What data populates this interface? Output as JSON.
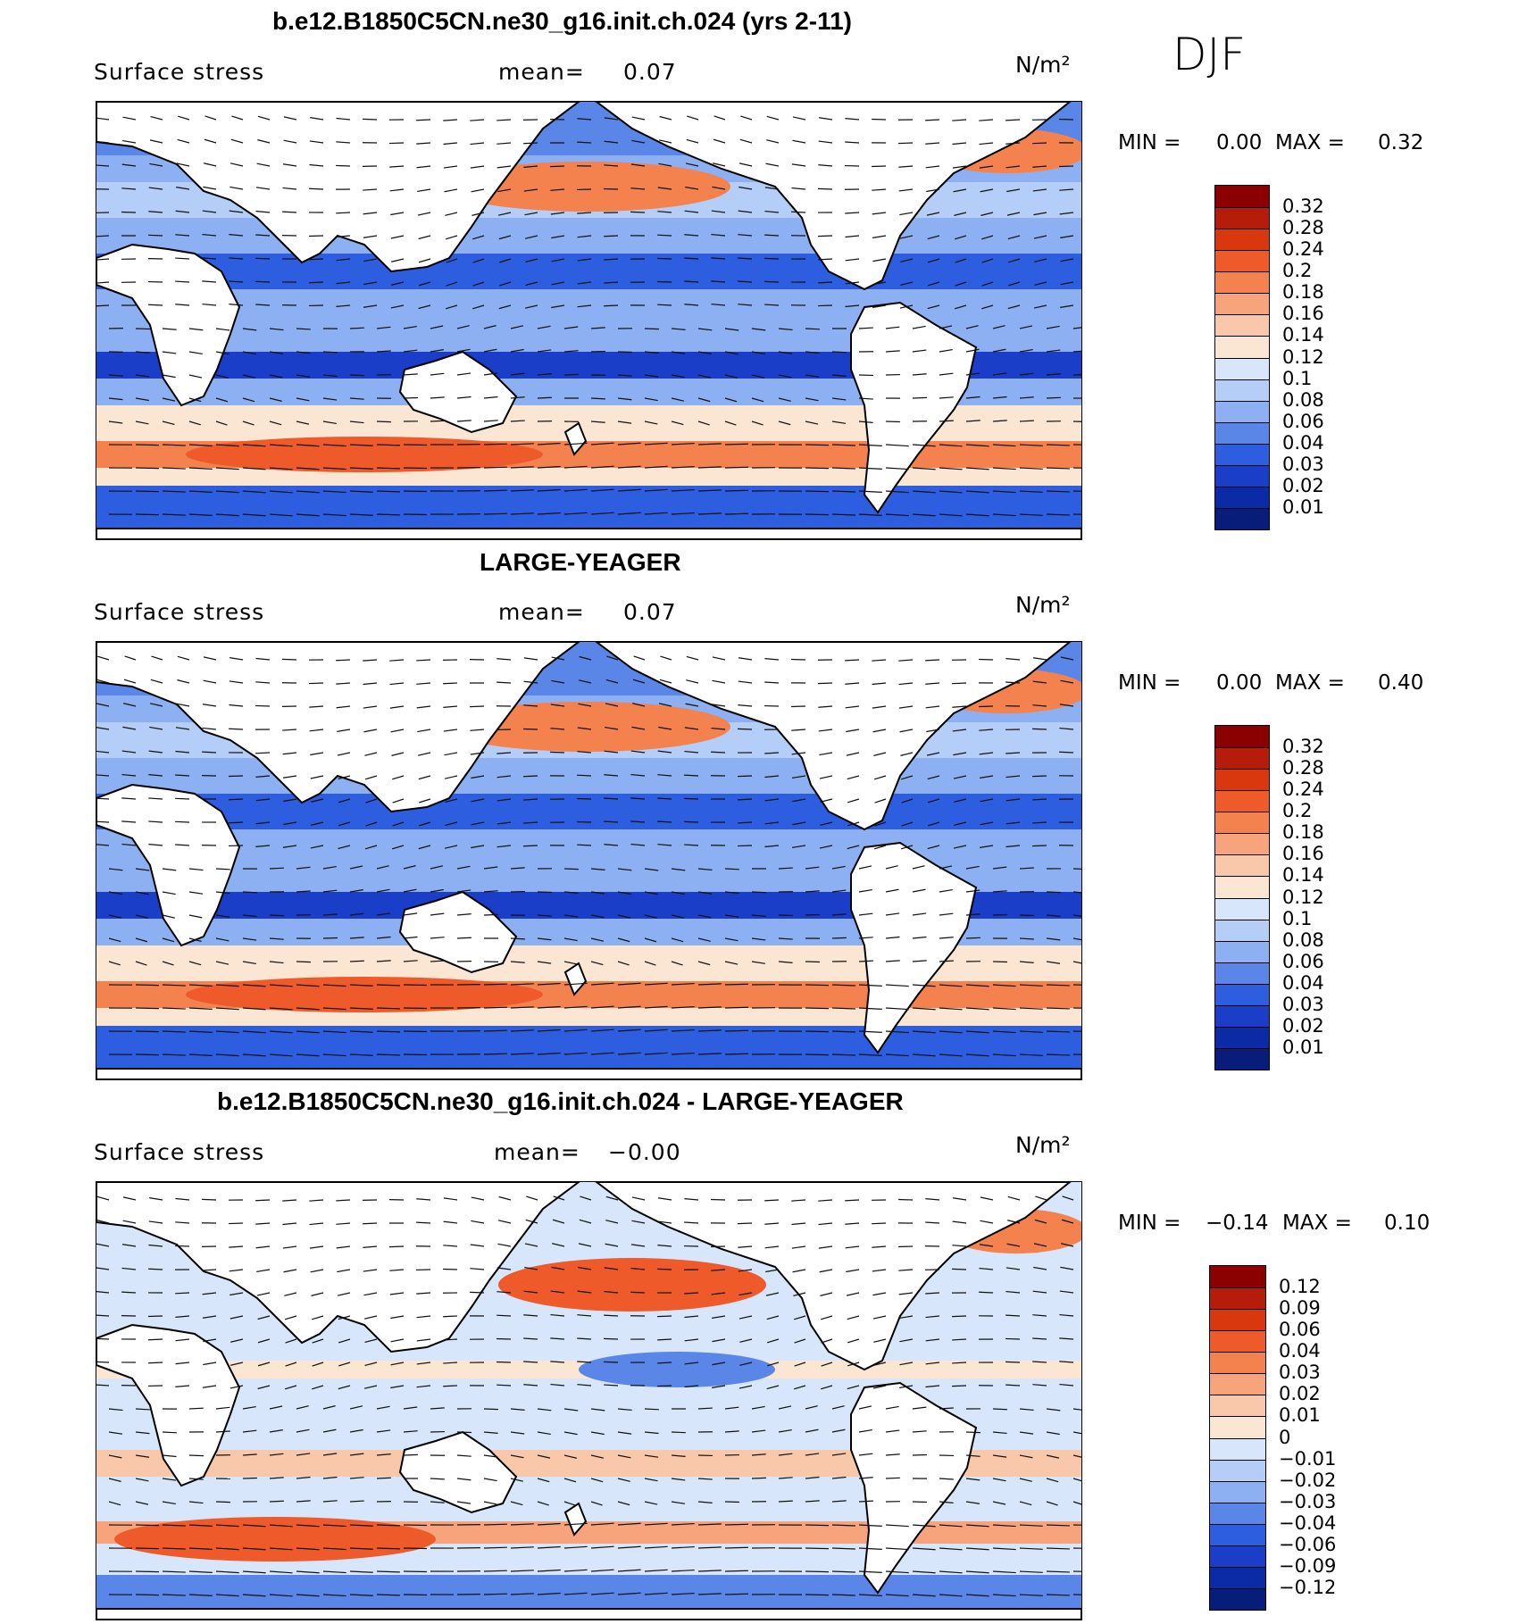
{
  "season": "DJF",
  "colors": {
    "ocean_bg": "#3f6fe0",
    "land": "#ffffff",
    "coast": "#000000",
    "arrow": "#111111"
  },
  "panels": [
    {
      "id": "model",
      "title": "b.e12.B1850C5CN.ne30_g16.init.ch.024 (yrs 2-11)",
      "variable": "Surface stress",
      "mean_label": "mean=",
      "mean_value": "0.07",
      "units": "N/m²",
      "min_label": "MIN =",
      "min_value": "0.00",
      "max_label": "MAX =",
      "max_value": "0.32",
      "legend_labels": [
        "0.32",
        "0.28",
        "0.24",
        "0.2",
        "0.18",
        "0.16",
        "0.14",
        "0.12",
        "0.1",
        "0.08",
        "0.06",
        "0.04",
        "0.03",
        "0.02",
        "0.01"
      ],
      "legend_colors": [
        "#8b0000",
        "#b51c0a",
        "#d9380f",
        "#ee5a2a",
        "#f3824f",
        "#f7a37c",
        "#f9c7a9",
        "#fbe5d3",
        "#d7e6fb",
        "#b4cef7",
        "#8cb0f2",
        "#5a86e8",
        "#2e5ee0",
        "#1b3ec8",
        "#0b2aa6",
        "#081c7a"
      ]
    },
    {
      "id": "obs",
      "title": "LARGE-YEAGER",
      "variable": "Surface stress",
      "mean_label": "mean=",
      "mean_value": "0.07",
      "units": "N/m²",
      "min_label": "MIN =",
      "min_value": "0.00",
      "max_label": "MAX =",
      "max_value": "0.40",
      "legend_labels": [
        "0.32",
        "0.28",
        "0.24",
        "0.2",
        "0.18",
        "0.16",
        "0.14",
        "0.12",
        "0.1",
        "0.08",
        "0.06",
        "0.04",
        "0.03",
        "0.02",
        "0.01"
      ],
      "legend_colors": [
        "#8b0000",
        "#b51c0a",
        "#d9380f",
        "#ee5a2a",
        "#f3824f",
        "#f7a37c",
        "#f9c7a9",
        "#fbe5d3",
        "#d7e6fb",
        "#b4cef7",
        "#8cb0f2",
        "#5a86e8",
        "#2e5ee0",
        "#1b3ec8",
        "#0b2aa6",
        "#081c7a"
      ]
    },
    {
      "id": "diff",
      "title": "b.e12.B1850C5CN.ne30_g16.init.ch.024 - LARGE-YEAGER",
      "variable": "Surface stress",
      "mean_label": "mean=",
      "mean_value": "−0.00",
      "units": "N/m²",
      "min_label": "MIN =",
      "min_value": "−0.14",
      "max_label": "MAX =",
      "max_value": "0.10",
      "legend_labels": [
        "0.12",
        "0.09",
        "0.06",
        "0.04",
        "0.03",
        "0.02",
        "0.01",
        "0",
        "−0.01",
        "−0.02",
        "−0.03",
        "−0.04",
        "−0.06",
        "−0.09",
        "−0.12"
      ],
      "legend_colors": [
        "#8b0000",
        "#b51c0a",
        "#d9380f",
        "#ee5a2a",
        "#f3824f",
        "#f7a37c",
        "#f9c7a9",
        "#fbe5d3",
        "#d7e6fb",
        "#b4cef7",
        "#8cb0f2",
        "#5a86e8",
        "#2e5ee0",
        "#1b3ec8",
        "#0b2aa6",
        "#081c7a"
      ]
    }
  ]
}
